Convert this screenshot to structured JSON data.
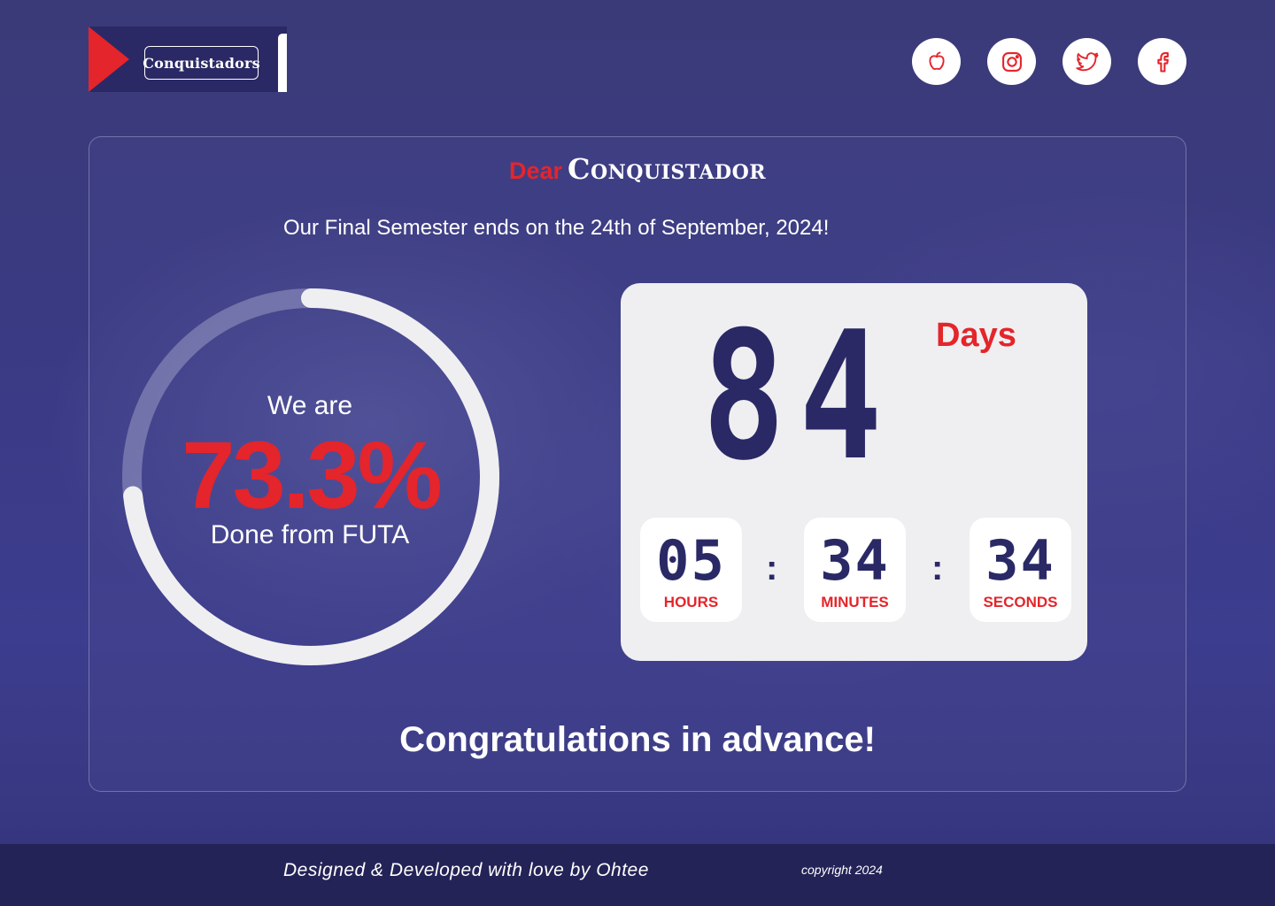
{
  "header": {
    "logo_text": "Conquistadors",
    "socials": [
      {
        "name": "apple",
        "icon": "apple-icon"
      },
      {
        "name": "instagram",
        "icon": "instagram-icon"
      },
      {
        "name": "twitter",
        "icon": "twitter-icon"
      },
      {
        "name": "facebook",
        "icon": "facebook-icon"
      }
    ]
  },
  "greeting": {
    "dear": "Dear",
    "name": "Conquistador"
  },
  "subtitle": "Our Final Semester ends on the 24th of September, 2024!",
  "progress": {
    "prefix": "We are",
    "percent_text": "73.3%",
    "percent_value": 73.3,
    "suffix": "Done from FUTA"
  },
  "countdown": {
    "days": "84",
    "days_label": "Days",
    "hours": "05",
    "hours_label": "HOURS",
    "minutes": "34",
    "minutes_label": "MINUTES",
    "seconds": "34",
    "seconds_label": "SECONDS",
    "separator": ":"
  },
  "congrats": "Congratulations in advance!",
  "footer": {
    "credit": "Designed & Developed with love by Ohtee",
    "copyright": "copyright 2024"
  },
  "colors": {
    "accent": "#e4252b",
    "navy": "#2a2966",
    "ring_track": "#9b9bc6",
    "ring_fill": "#efeff1"
  }
}
